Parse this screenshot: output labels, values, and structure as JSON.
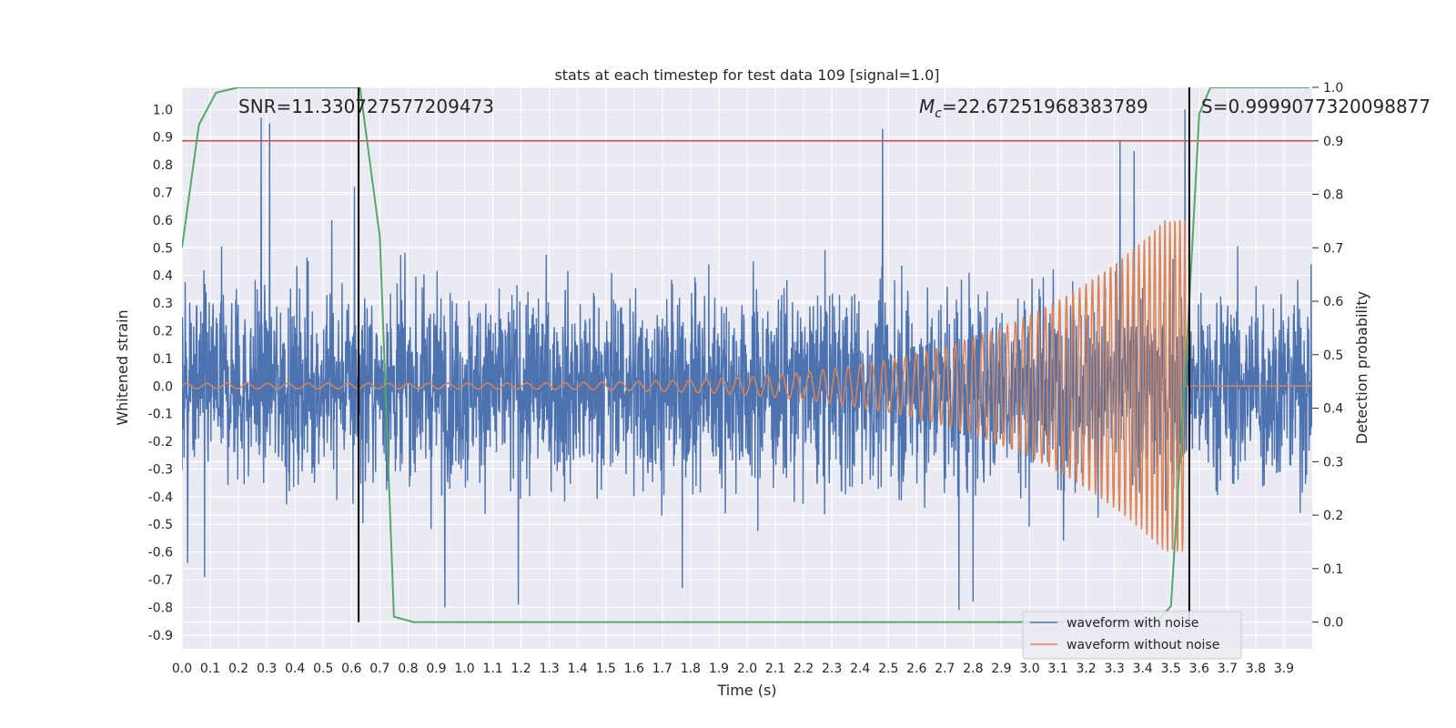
{
  "chart_data": {
    "type": "line",
    "title": "stats at each timestep for test data 109 [signal=1.0]",
    "xlabel": "Time (s)",
    "ylabel": "Whitened strain",
    "ylabel_right": "Detection probability",
    "xlim": [
      0.0,
      4.0
    ],
    "ylim": [
      -0.95,
      1.08
    ],
    "ylim_right": [
      -0.05,
      1.0
    ],
    "x_ticks": [
      0.0,
      0.1,
      0.2,
      0.3,
      0.4,
      0.5,
      0.6,
      0.7,
      0.8,
      0.9,
      1.0,
      1.1,
      1.2,
      1.3,
      1.4,
      1.5,
      1.6,
      1.7,
      1.8,
      1.9,
      2.0,
      2.1,
      2.2,
      2.3,
      2.4,
      2.5,
      2.6,
      2.7,
      2.8,
      2.9,
      3.0,
      3.1,
      3.2,
      3.3,
      3.4,
      3.5,
      3.6,
      3.7,
      3.8,
      3.9
    ],
    "y_ticks": [
      1.0,
      0.9,
      0.8,
      0.7,
      0.6,
      0.5,
      0.4,
      0.3,
      0.2,
      0.1,
      0.0,
      -0.1,
      -0.2,
      -0.3,
      -0.4,
      -0.5,
      -0.6,
      -0.7,
      -0.8,
      -0.9
    ],
    "y_ticks_right": [
      1.0,
      0.9,
      0.8,
      0.7,
      0.6,
      0.5,
      0.4,
      0.3,
      0.2,
      0.1,
      0.0
    ],
    "grid": true,
    "legend_position": "lower-right",
    "series": [
      {
        "name": "waveform with noise",
        "color": "#4c72b0",
        "axis": "left",
        "envelope": {
          "upper": 0.42,
          "lower": -0.42,
          "peak_high": 0.97,
          "peak_low": -0.86
        },
        "spikes": [
          {
            "x": 0.28,
            "y": 0.97
          },
          {
            "x": 0.31,
            "y": 0.95
          },
          {
            "x": 0.61,
            "y": 0.72
          },
          {
            "x": 0.53,
            "y": 0.6
          },
          {
            "x": 2.48,
            "y": 0.93
          },
          {
            "x": 3.55,
            "y": 1.0
          },
          {
            "x": 3.32,
            "y": 0.89
          },
          {
            "x": 3.37,
            "y": 0.85
          },
          {
            "x": 0.93,
            "y": -0.8
          },
          {
            "x": 1.19,
            "y": -0.79
          },
          {
            "x": 2.75,
            "y": -0.81
          },
          {
            "x": 2.8,
            "y": -0.78
          },
          {
            "x": 0.02,
            "y": -0.64
          },
          {
            "x": 1.77,
            "y": -0.73
          },
          {
            "x": 0.08,
            "y": -0.69
          }
        ]
      },
      {
        "name": "waveform without noise",
        "color": "#dd8452",
        "axis": "left",
        "chirp": {
          "start_amp": 0.01,
          "end_amp": 0.6,
          "merger_x": 3.55,
          "start_freq_hz": 14,
          "end_freq_hz": 60
        }
      },
      {
        "name": "",
        "color": "#55a868",
        "axis": "right",
        "x": [
          0.0,
          0.06,
          0.12,
          0.2,
          0.3,
          0.4,
          0.5,
          0.6,
          0.63,
          0.7,
          0.75,
          0.82,
          0.9,
          1.5,
          2.0,
          2.5,
          3.0,
          3.45,
          3.5,
          3.56,
          3.6,
          3.64,
          3.7,
          3.8,
          3.9,
          3.99
        ],
        "values": [
          0.7,
          0.93,
          0.99,
          1.0,
          1.0,
          1.0,
          1.0,
          1.0,
          1.0,
          0.72,
          0.01,
          0.0,
          0.0,
          0.0,
          0.0,
          0.0,
          0.0,
          0.0,
          0.03,
          0.55,
          0.95,
          1.0,
          1.0,
          1.0,
          1.0,
          1.0
        ]
      }
    ],
    "threshold": {
      "value": 0.9,
      "axis": "right",
      "color": "#c44e52"
    },
    "vlines": [
      {
        "x": 0.625,
        "color": "#000000"
      },
      {
        "x": 3.565,
        "color": "#000000"
      }
    ],
    "annotations": {
      "snr": "SNR=11.330727577209473",
      "mc_symbol": "M",
      "mc_sub": "c",
      "mc_value": "=22.67251968383789",
      "s": "S=0.9999077320098877"
    }
  }
}
